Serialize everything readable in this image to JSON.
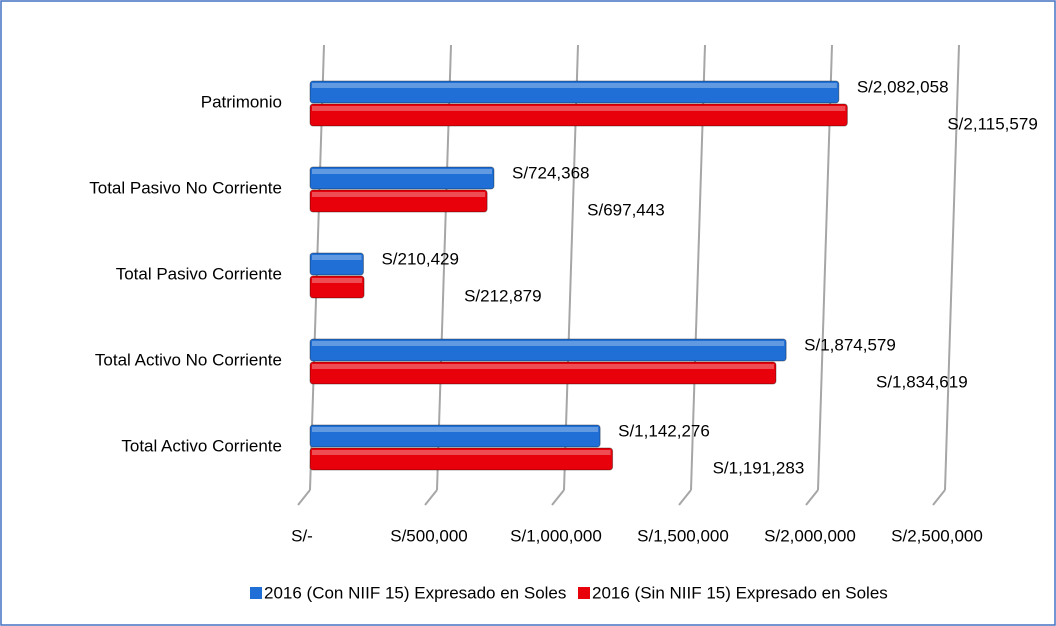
{
  "chart_data": {
    "type": "hbar",
    "categories": [
      "Patrimonio",
      "Total Pasivo No Corriente",
      "Total Pasivo Corriente",
      "Total Activo No Corriente",
      "Total Activo Corriente"
    ],
    "series": [
      {
        "name": "2016 (Con NIIF 15) Expresado en Soles",
        "color": "#1f6fd6",
        "values": [
          2082058,
          724368,
          210429,
          1874579,
          1142276
        ],
        "value_labels": [
          "S/2,082,058",
          "S/724,368",
          "S/210,429",
          "S/1,874,579",
          "S/1,142,276"
        ]
      },
      {
        "name": "2016 (Sin NIIF 15) Expresado en Soles",
        "color": "#e8000b",
        "values": [
          2115579,
          697443,
          212879,
          1834619,
          1191283
        ],
        "value_labels": [
          "S/2,115,579",
          "S/697,443",
          "S/212,879",
          "S/1,834,619",
          "S/1,191,283"
        ]
      }
    ],
    "xlim": [
      0,
      2500000
    ],
    "xticks": [
      {
        "value": 0,
        "label": "S/-"
      },
      {
        "value": 500000,
        "label": "S/500,000"
      },
      {
        "value": 1000000,
        "label": "S/1,000,000"
      },
      {
        "value": 1500000,
        "label": "S/1,500,000"
      },
      {
        "value": 2000000,
        "label": "S/2,000,000"
      },
      {
        "value": 2500000,
        "label": "S/2,500,000"
      }
    ],
    "grid": true,
    "legend": "bottom"
  }
}
